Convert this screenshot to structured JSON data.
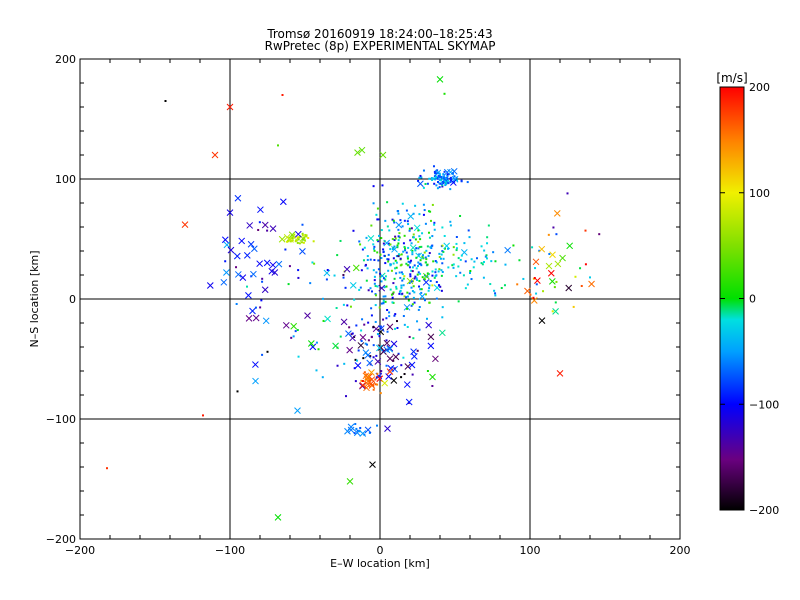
{
  "chart_data": {
    "type": "scatter",
    "title": "Tromsø 20160919 18:24:00–18:25:43",
    "subtitle": "RwPretec (8p) EXPERIMENTAL SKYMAP",
    "xlabel": "E–W location [km]",
    "ylabel": "N–S location [km]",
    "xlim": [
      -200,
      200
    ],
    "ylim": [
      -200,
      200
    ],
    "xticks": [
      -200,
      -100,
      0,
      100,
      200
    ],
    "yticks": [
      -200,
      -100,
      0,
      100,
      200
    ],
    "grid_lines": [
      -100,
      0,
      100
    ],
    "colorbar": {
      "label": "[m/s]",
      "range": [
        -200,
        200
      ],
      "ticks": [
        200,
        100,
        0,
        -100,
        -200
      ]
    },
    "markers": [
      "x",
      "dot"
    ],
    "clusters": [
      {
        "center": [
          15,
          30
        ],
        "spread": [
          15,
          25
        ],
        "count": 380,
        "v_mean": -40,
        "v_spread": 45,
        "x_fraction": 0.05
      },
      {
        "center": [
          42,
          100
        ],
        "spread": [
          6,
          4
        ],
        "count": 90,
        "v_mean": -65,
        "v_spread": 25,
        "x_fraction": 0.1
      },
      {
        "center": [
          60,
          30
        ],
        "spread": [
          20,
          12
        ],
        "count": 70,
        "v_mean": -25,
        "v_spread": 20,
        "x_fraction": 0.05
      },
      {
        "center": [
          -55,
          50
        ],
        "spread": [
          4,
          3
        ],
        "count": 40,
        "v_mean": 70,
        "v_spread": 12,
        "x_fraction": 0.15
      },
      {
        "center": [
          -85,
          25
        ],
        "spread": [
          14,
          25
        ],
        "count": 50,
        "v_mean": -100,
        "v_spread": 30,
        "x_fraction": 0.6
      },
      {
        "center": [
          0,
          -40
        ],
        "spread": [
          14,
          18
        ],
        "count": 90,
        "v_mean": -120,
        "v_spread": 55,
        "x_fraction": 0.35
      },
      {
        "center": [
          -5,
          -70
        ],
        "spread": [
          4,
          5
        ],
        "count": 30,
        "v_mean": 160,
        "v_spread": 30,
        "x_fraction": 0.3
      },
      {
        "center": [
          -15,
          -108
        ],
        "spread": [
          5,
          3
        ],
        "count": 15,
        "v_mean": -70,
        "v_spread": 10,
        "x_fraction": 0.3
      },
      {
        "center": [
          110,
          25
        ],
        "spread": [
          15,
          20
        ],
        "count": 40,
        "v_mean": 90,
        "v_spread": 110,
        "x_fraction": 0.3
      },
      {
        "center": [
          -40,
          -10
        ],
        "spread": [
          25,
          30
        ],
        "count": 45,
        "v_mean": -50,
        "v_spread": 70,
        "x_fraction": 0.4
      }
    ],
    "notable_points": [
      {
        "x": -100,
        "y": 160,
        "v": 190,
        "marker": "x"
      },
      {
        "x": -110,
        "y": 120,
        "v": 180,
        "marker": "x"
      },
      {
        "x": -143,
        "y": 165,
        "v": -200,
        "marker": "dot"
      },
      {
        "x": -65,
        "y": 170,
        "v": 190,
        "marker": "dot"
      },
      {
        "x": -130,
        "y": 62,
        "v": 180,
        "marker": "x"
      },
      {
        "x": 40,
        "y": 183,
        "v": 0,
        "marker": "x"
      },
      {
        "x": 43,
        "y": 171,
        "v": 10,
        "marker": "dot"
      },
      {
        "x": -68,
        "y": 128,
        "v": 30,
        "marker": "dot"
      },
      {
        "x": -15,
        "y": 122,
        "v": 40,
        "marker": "x"
      },
      {
        "x": -12,
        "y": 124,
        "v": 35,
        "marker": "x"
      },
      {
        "x": 2,
        "y": 120,
        "v": 40,
        "marker": "x"
      },
      {
        "x": 120,
        "y": -62,
        "v": 190,
        "marker": "x"
      },
      {
        "x": 108,
        "y": -18,
        "v": -200,
        "marker": "x"
      },
      {
        "x": 125,
        "y": 88,
        "v": -130,
        "marker": "dot"
      },
      {
        "x": 137,
        "y": 57,
        "v": 180,
        "marker": "dot"
      },
      {
        "x": 140,
        "y": 18,
        "v": -30,
        "marker": "dot"
      },
      {
        "x": -182,
        "y": -141,
        "v": 180,
        "marker": "dot"
      },
      {
        "x": -118,
        "y": -97,
        "v": 190,
        "marker": "dot"
      },
      {
        "x": -95,
        "y": -77,
        "v": -200,
        "marker": "dot"
      },
      {
        "x": -55,
        "y": -93,
        "v": -50,
        "marker": "x"
      },
      {
        "x": -68,
        "y": -182,
        "v": 0,
        "marker": "x"
      },
      {
        "x": -20,
        "y": -152,
        "v": 20,
        "marker": "x"
      },
      {
        "x": -5,
        "y": -138,
        "v": -200,
        "marker": "x"
      },
      {
        "x": 5,
        "y": -108,
        "v": -120,
        "marker": "x"
      },
      {
        "x": 35,
        "y": -65,
        "v": 10,
        "marker": "x"
      },
      {
        "x": -100,
        "y": 72,
        "v": -110,
        "marker": "x"
      },
      {
        "x": -85,
        "y": -10,
        "v": -90,
        "marker": "x"
      },
      {
        "x": -75,
        "y": -44,
        "v": -200,
        "marker": "dot"
      }
    ]
  }
}
